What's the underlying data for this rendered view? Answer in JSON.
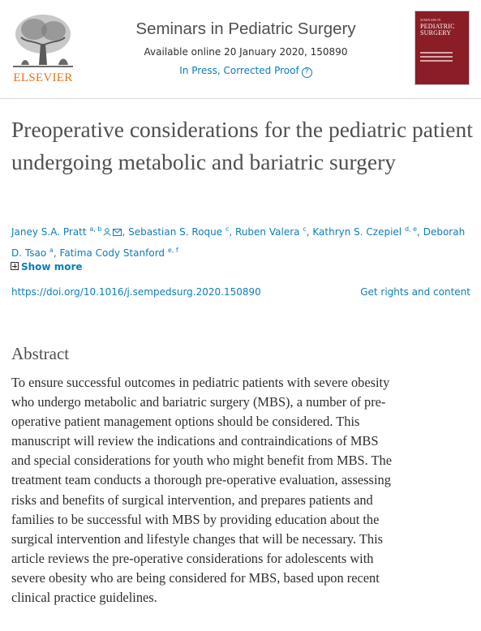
{
  "header": {
    "publisher": "ELSEVIER",
    "journal_title": "Seminars in Pediatric Surgery",
    "availability": "Available online 20 January 2020, 150890",
    "status": "In Press, Corrected Proof",
    "help_icon": "?",
    "cover": {
      "small_text": "SEMINARS IN",
      "title_line1": "PEDIATRIC",
      "title_line2": "SURGERY"
    }
  },
  "article": {
    "title": "Preoperative considerations for the pediatric patient undergoing metabolic and bariatric surgery",
    "authors": [
      {
        "name": "Janey S.A. Pratt",
        "sup": "a, b",
        "icons": [
          "person-icon",
          "email-icon"
        ]
      },
      {
        "name": "Sebastian S. Roque",
        "sup": "c"
      },
      {
        "name": "Ruben Valera",
        "sup": "c"
      },
      {
        "name": "Kathryn S. Czepiel",
        "sup": "d, e"
      },
      {
        "name": "Deborah D. Tsao",
        "sup": "a"
      },
      {
        "name": "Fatima Cody Stanford",
        "sup": "e, f"
      }
    ],
    "show_more": "Show more",
    "doi": "https://doi.org/10.1016/j.sempedsurg.2020.150890",
    "rights": "Get rights and content"
  },
  "abstract": {
    "heading": "Abstract",
    "lines": [
      "To ensure successful outcomes in pediatric patients with severe obesity",
      "who undergo metabolic and bariatric surgery (MBS), a number of pre-",
      "operative patient management options should be considered. This",
      "manuscript will review the indications and contraindications of MBS",
      "and special considerations for youth who might benefit from MBS. The",
      "treatment team conducts a thorough pre-operative evaluation, assessing",
      "risks and benefits of surgical intervention, and prepares patients and",
      "families to be successful with MBS by providing education about the",
      "surgical intervention and lifestyle changes that will be necessary. This",
      "article reviews the pre-operative considerations for adolescents with",
      "severe obesity who are being considered for MBS, based upon recent",
      "clinical practice guidelines."
    ]
  },
  "colors": {
    "link": "#0c7dbb",
    "elsevier_orange": "#e9711c",
    "cover_red": "#8a1d26",
    "text": "#2e2e2e",
    "title_gray": "#505050"
  }
}
